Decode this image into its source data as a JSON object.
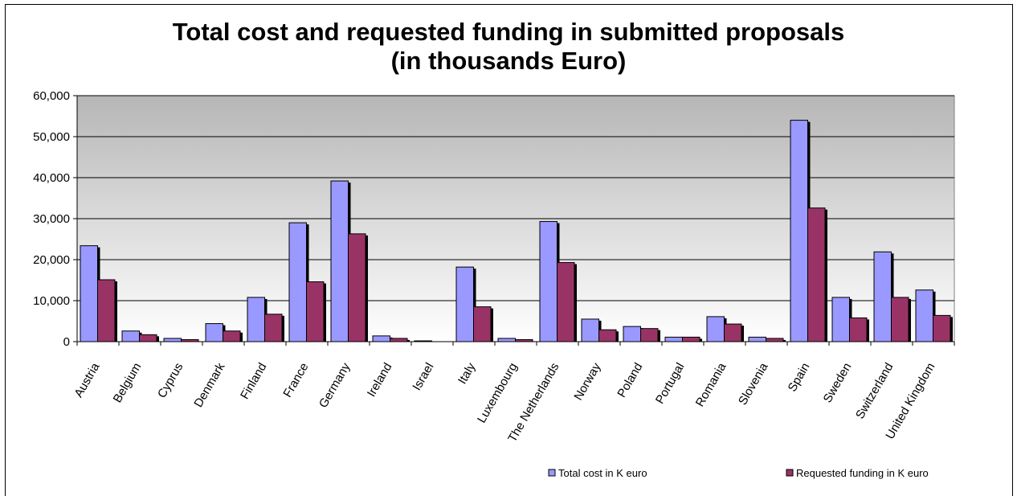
{
  "chart_data": {
    "type": "bar",
    "title": "Total cost and requested funding in submitted proposals",
    "subtitle": "(in thousands Euro)",
    "categories": [
      "Austria",
      "Belgium",
      "Cyprus",
      "Denmark",
      "Finland",
      "France",
      "Germany",
      "Ireland",
      "Israel",
      "Italy",
      "Luxembourg",
      "The Netherlands",
      "Norway",
      "Poland",
      "Portugal",
      "Romania",
      "Slovenia",
      "Spain",
      "Sweden",
      "Switzerland",
      "United Kingdom"
    ],
    "series": [
      {
        "name": "Total cost in K euro",
        "color": "#9999ff",
        "values": [
          23400,
          2600,
          800,
          4400,
          10800,
          29000,
          39200,
          1400,
          200,
          18200,
          800,
          29300,
          5500,
          3700,
          1100,
          6100,
          1100,
          54000,
          10800,
          21900,
          12600
        ]
      },
      {
        "name": "Requested funding in K euro",
        "color": "#993366",
        "values": [
          15100,
          1700,
          500,
          2600,
          6700,
          14600,
          26300,
          800,
          0,
          8500,
          500,
          19300,
          2900,
          3200,
          1100,
          4300,
          800,
          32600,
          5800,
          10800,
          6400
        ]
      }
    ],
    "ylim": [
      0,
      60000
    ],
    "yticks": [
      "0",
      "10,000",
      "20,000",
      "30,000",
      "40,000",
      "50,000",
      "60,000"
    ],
    "grid": true,
    "legend_position": "bottom-right"
  }
}
